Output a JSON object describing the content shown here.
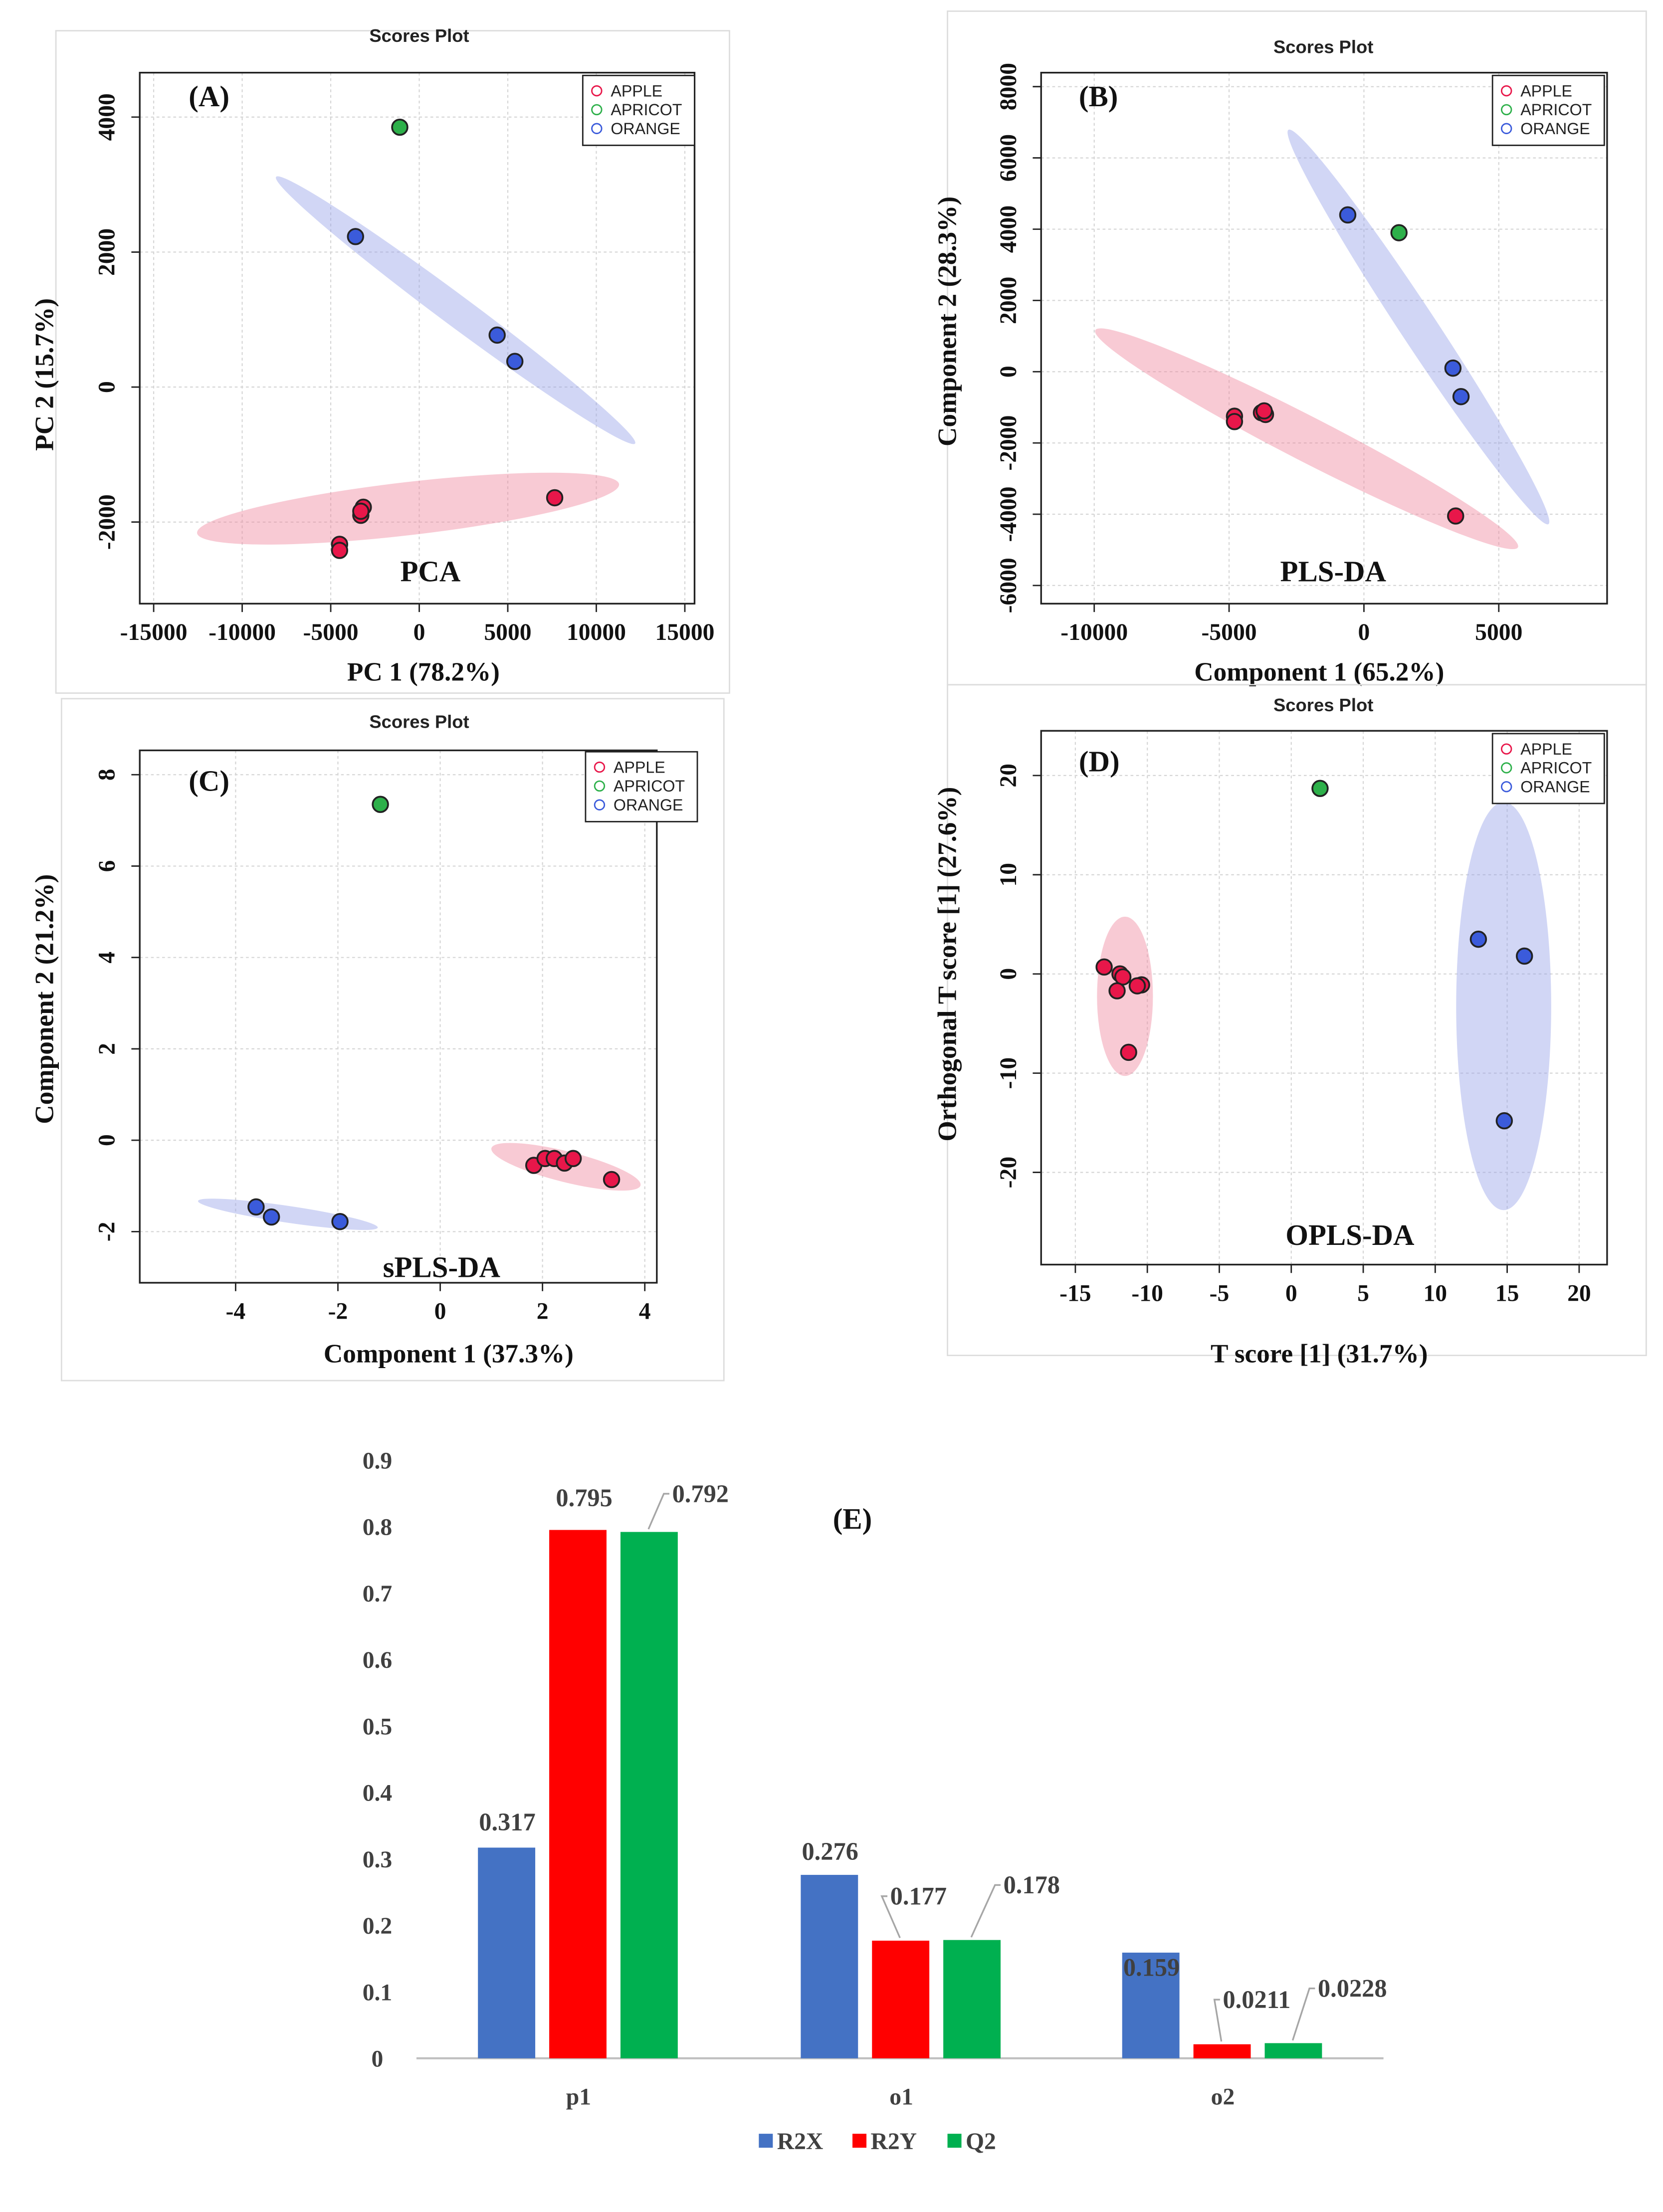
{
  "chart_data": [
    {
      "type": "scatter",
      "panel_label": "(A)",
      "title": "Scores Plot",
      "method_label": "PCA",
      "xlabel": "PC 1 (78.2%)",
      "ylabel": "PC 2 (15.7%)",
      "xticks": [
        -15000,
        -10000,
        -5000,
        0,
        5000,
        10000,
        15000
      ],
      "yticks": [
        -2000,
        0,
        2000,
        4000
      ],
      "xlim": [
        -15000,
        15000
      ],
      "ylim": [
        -3000,
        4500
      ],
      "legend": [
        "APPLE",
        "APRICOT",
        "ORANGE"
      ],
      "legend_position": "top-right",
      "series": [
        {
          "name": "APPLE",
          "color": "#E8174A",
          "points": [
            [
              -4500,
              -2330
            ],
            [
              -4500,
              -2420
            ],
            [
              -3300,
              -1900
            ],
            [
              -3160,
              -1780
            ],
            [
              -3300,
              -1840
            ],
            [
              7650,
              -1640
            ]
          ]
        },
        {
          "name": "APRICOT",
          "color": "#2DB04A",
          "points": [
            [
              -1100,
              3850
            ]
          ]
        },
        {
          "name": "ORANGE",
          "color": "#3B5BDB",
          "points": [
            [
              -3600,
              2230
            ],
            [
              4400,
              770
            ],
            [
              5400,
              380
            ]
          ]
        }
      ]
    },
    {
      "type": "scatter",
      "panel_label": "(B)",
      "title": "Scores Plot",
      "method_label": "PLS-DA",
      "xlabel": "Component 1 (65.2%)",
      "ylabel": "Component 2 (28.3%)",
      "xticks": [
        -10000,
        -5000,
        0,
        5000
      ],
      "yticks": [
        -6000,
        -4000,
        -2000,
        0,
        2000,
        4000,
        6000,
        8000
      ],
      "xlim": [
        -12000,
        9000
      ],
      "ylim": [
        -6500,
        8500
      ],
      "legend": [
        "APPLE",
        "APRICOT",
        "ORANGE"
      ],
      "legend_position": "top-right",
      "series": [
        {
          "name": "APPLE",
          "color": "#E8174A",
          "points": [
            [
              -4800,
              -1250
            ],
            [
              -4800,
              -1400
            ],
            [
              -3800,
              -1150
            ],
            [
              -3650,
              -1200
            ],
            [
              -3700,
              -1100
            ],
            [
              3400,
              -4050
            ]
          ]
        },
        {
          "name": "APRICOT",
          "color": "#2DB04A",
          "points": [
            [
              1300,
              3900
            ]
          ]
        },
        {
          "name": "ORANGE",
          "color": "#3B5BDB",
          "points": [
            [
              -600,
              4400
            ],
            [
              3300,
              100
            ],
            [
              3600,
              -700
            ]
          ]
        }
      ]
    },
    {
      "type": "scatter",
      "panel_label": "(C)",
      "title": "Scores Plot",
      "method_label": "sPLS-DA",
      "xlabel": "Component 1 (37.3%)",
      "ylabel": "Component 2 (21.2%)",
      "xticks": [
        -4,
        -2,
        0,
        2,
        4
      ],
      "yticks": [
        -2,
        0,
        2,
        4,
        6,
        8
      ],
      "xlim": [
        -5.8,
        4.4
      ],
      "ylim": [
        -3.1,
        8.5
      ],
      "legend": [
        "APPLE",
        "APRICOT",
        "ORANGE"
      ],
      "legend_position": "top-right",
      "series": [
        {
          "name": "APPLE",
          "color": "#E8174A",
          "points": [
            [
              1.83,
              -0.55
            ],
            [
              2.05,
              -0.4
            ],
            [
              2.23,
              -0.4
            ],
            [
              2.43,
              -0.5
            ],
            [
              2.6,
              -0.4
            ],
            [
              3.35,
              -0.86
            ]
          ]
        },
        {
          "name": "APRICOT",
          "color": "#2DB04A",
          "points": [
            [
              -1.17,
              7.35
            ]
          ]
        },
        {
          "name": "ORANGE",
          "color": "#3B5BDB",
          "points": [
            [
              -3.6,
              -1.46
            ],
            [
              -3.3,
              -1.68
            ],
            [
              -1.96,
              -1.78
            ]
          ]
        }
      ]
    },
    {
      "type": "scatter",
      "panel_label": "(D)",
      "title": "Scores Plot",
      "method_label": "OPLS-DA",
      "xlabel": "T score [1] (31.7%)",
      "ylabel": "Orthogonal T score [1] (27.6%)",
      "xticks": [
        -15,
        -10,
        -5,
        0,
        5,
        10,
        15,
        20
      ],
      "yticks": [
        -20,
        -10,
        0,
        10,
        20
      ],
      "xlim": [
        -17,
        22
      ],
      "ylim": [
        -29,
        24
      ],
      "legend": [
        "APPLE",
        "APRICOT",
        "ORANGE"
      ],
      "legend_position": "top-right",
      "series": [
        {
          "name": "APPLE",
          "color": "#E8174A",
          "points": [
            [
              -13,
              0.7
            ],
            [
              -11.9,
              0
            ],
            [
              -11.7,
              -0.3
            ],
            [
              -12.1,
              -1.7
            ],
            [
              -10.4,
              -1.1
            ],
            [
              -10.7,
              -1.2
            ],
            [
              -11.3,
              -7.9
            ]
          ]
        },
        {
          "name": "APRICOT",
          "color": "#2DB04A",
          "points": [
            [
              2,
              18.7
            ]
          ]
        },
        {
          "name": "ORANGE",
          "color": "#3B5BDB",
          "points": [
            [
              13,
              3.5
            ],
            [
              16.2,
              1.8
            ],
            [
              14.8,
              -14.8
            ]
          ]
        }
      ]
    },
    {
      "type": "bar",
      "panel_label": "(E)",
      "categories": [
        "p1",
        "o1",
        "o2"
      ],
      "yticks": [
        "0",
        "0.1",
        "0.2",
        "0.3",
        "0.4",
        "0.5",
        "0.6",
        "0.7",
        "0.8",
        "0.9"
      ],
      "ylim": [
        0,
        0.9
      ],
      "legend_position": "bottom",
      "series": [
        {
          "name": "R2X",
          "color": "#4472C4",
          "values": [
            0.317,
            0.276,
            0.159
          ],
          "labels": [
            "0.317",
            "0.276",
            "0.159"
          ]
        },
        {
          "name": "R2Y",
          "color": "#FF0000",
          "values": [
            0.795,
            0.177,
            0.0211
          ],
          "labels": [
            "0.795",
            "0.177",
            "0.0211"
          ]
        },
        {
          "name": "Q2",
          "color": "#00B050",
          "values": [
            0.792,
            0.178,
            0.0228
          ],
          "labels": [
            "0.792",
            "0.178",
            "0.0228"
          ]
        }
      ]
    }
  ]
}
